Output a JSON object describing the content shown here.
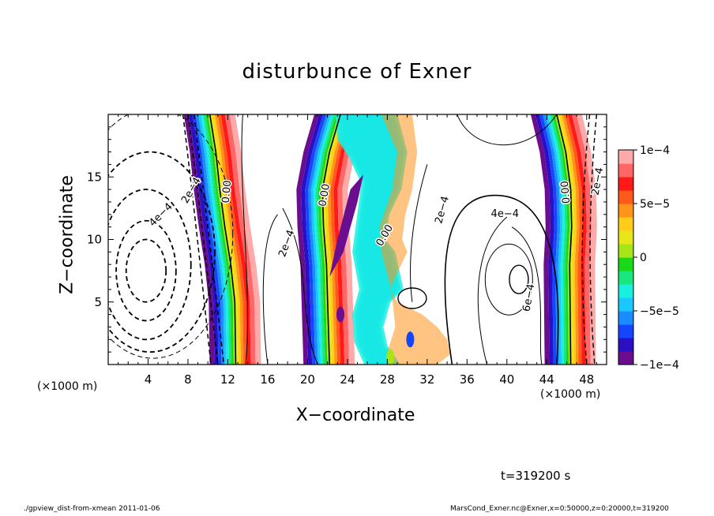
{
  "title": "disturbunce of Exner",
  "xlabel": "X−coordinate",
  "ylabel": "Z−coordinate",
  "x_unit_left": "(×1000 m)",
  "x_unit_right": "(×1000 m)",
  "time_label": "t=319200 s",
  "footer_left": "./gpview_dist-from-xmean  2011-01-06",
  "footer_right": "MarsCond_Exner.nc@Exner,x=0:50000,z=0:20000,t=319200",
  "chart_data": {
    "type": "heatmap",
    "title": "disturbunce of Exner",
    "xlabel": "X−coordinate",
    "ylabel": "Z−coordinate",
    "x_unit": "(×1000 m)",
    "xlim": [
      0,
      50
    ],
    "ylim": [
      0,
      20
    ],
    "x_ticks": [
      4,
      8,
      12,
      16,
      20,
      24,
      28,
      32,
      36,
      40,
      44,
      48
    ],
    "y_ticks": [
      5,
      10,
      15
    ],
    "colorbar": {
      "range": [
        -0.0001,
        0.0001
      ],
      "tick_values": [
        0.0001,
        5e-05,
        0,
        -5e-05,
        -0.0001
      ],
      "tick_labels": [
        "1e−4",
        "5e−5",
        "0",
        "−5e−5",
        "−1e−4"
      ],
      "colors": [
        "#6a0d8f",
        "#2a0fc4",
        "#1446ff",
        "#1a8cff",
        "#19c8ff",
        "#19f0e0",
        "#19e67f",
        "#19d919",
        "#a6e619",
        "#e6e619",
        "#ffcc19",
        "#ff9419",
        "#ff5a19",
        "#ff1919",
        "#ff6666",
        "#ffaaaa"
      ]
    },
    "contour_labels": [
      "4e−4",
      "2e−4",
      "0.00",
      "2e−4",
      "0.00",
      "0.00",
      "2e−4",
      "4e−4",
      "6e−4",
      "0.00",
      "2e−4"
    ],
    "shaded_bands": [
      {
        "name": "left",
        "x": [
          10.2,
          10.8,
          11.2,
          11.7,
          12.3,
          12.7,
          12.8
        ],
        "z": [
          20,
          17,
          14,
          11,
          8,
          5,
          0
        ]
      },
      {
        "name": "center",
        "x": [
          23.3,
          22.2,
          21.5,
          21.6,
          21.9,
          22.2
        ],
        "z": [
          20,
          17,
          14,
          11,
          8,
          0
        ]
      },
      {
        "name": "right",
        "x": [
          45.0,
          45.9,
          46.4,
          46.5,
          46.3,
          46.4
        ],
        "z": [
          20,
          17,
          14,
          11,
          8,
          0
        ]
      }
    ]
  }
}
